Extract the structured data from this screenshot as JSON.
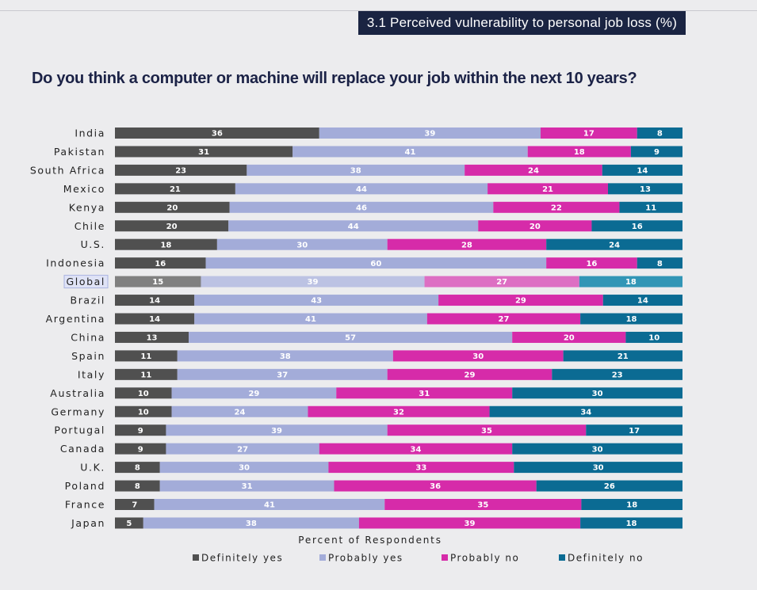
{
  "header": {
    "section_tag": "3.1 Perceived vulnerability to personal job loss (%)",
    "title": "Do you think a computer or machine will replace your job within the next 10 years?"
  },
  "chart_data": {
    "type": "bar",
    "orientation": "horizontal",
    "stacked": true,
    "title": "Do you think a computer or machine will replace your job within the next 10 years?",
    "xlabel": "Percent of Respondents",
    "ylabel": "",
    "legend_position": "bottom",
    "highlighted_category": "Global",
    "categories": [
      "India",
      "Pakistan",
      "South Africa",
      "Mexico",
      "Kenya",
      "Chile",
      "U.S.",
      "Indonesia",
      "Global",
      "Brazil",
      "Argentina",
      "China",
      "Spain",
      "Italy",
      "Australia",
      "Germany",
      "Portugal",
      "Canada",
      "U.K.",
      "Poland",
      "France",
      "Japan"
    ],
    "series": [
      {
        "name": "Definitely yes",
        "color": "#505050",
        "highlight_color": "#808080",
        "values": [
          36,
          31,
          23,
          21,
          20,
          20,
          18,
          16,
          15,
          14,
          14,
          13,
          11,
          11,
          10,
          10,
          9,
          9,
          8,
          8,
          7,
          5
        ]
      },
      {
        "name": "Probably yes",
        "color": "#a3acd9",
        "highlight_color": "#bcc2e3",
        "values": [
          39,
          41,
          38,
          44,
          46,
          44,
          30,
          60,
          39,
          43,
          41,
          57,
          38,
          37,
          29,
          24,
          39,
          27,
          30,
          31,
          41,
          38
        ]
      },
      {
        "name": "Probably no",
        "color": "#d62ba9",
        "highlight_color": "#dd6fc3",
        "values": [
          17,
          18,
          24,
          21,
          22,
          20,
          28,
          16,
          27,
          29,
          27,
          20,
          30,
          29,
          31,
          32,
          35,
          34,
          33,
          36,
          35,
          39
        ]
      },
      {
        "name": "Definitely no",
        "color": "#0b6b93",
        "highlight_color": "#3296b6",
        "values": [
          8,
          9,
          14,
          13,
          11,
          16,
          24,
          8,
          18,
          14,
          18,
          10,
          21,
          23,
          30,
          34,
          17,
          30,
          30,
          26,
          18,
          18
        ]
      }
    ]
  }
}
